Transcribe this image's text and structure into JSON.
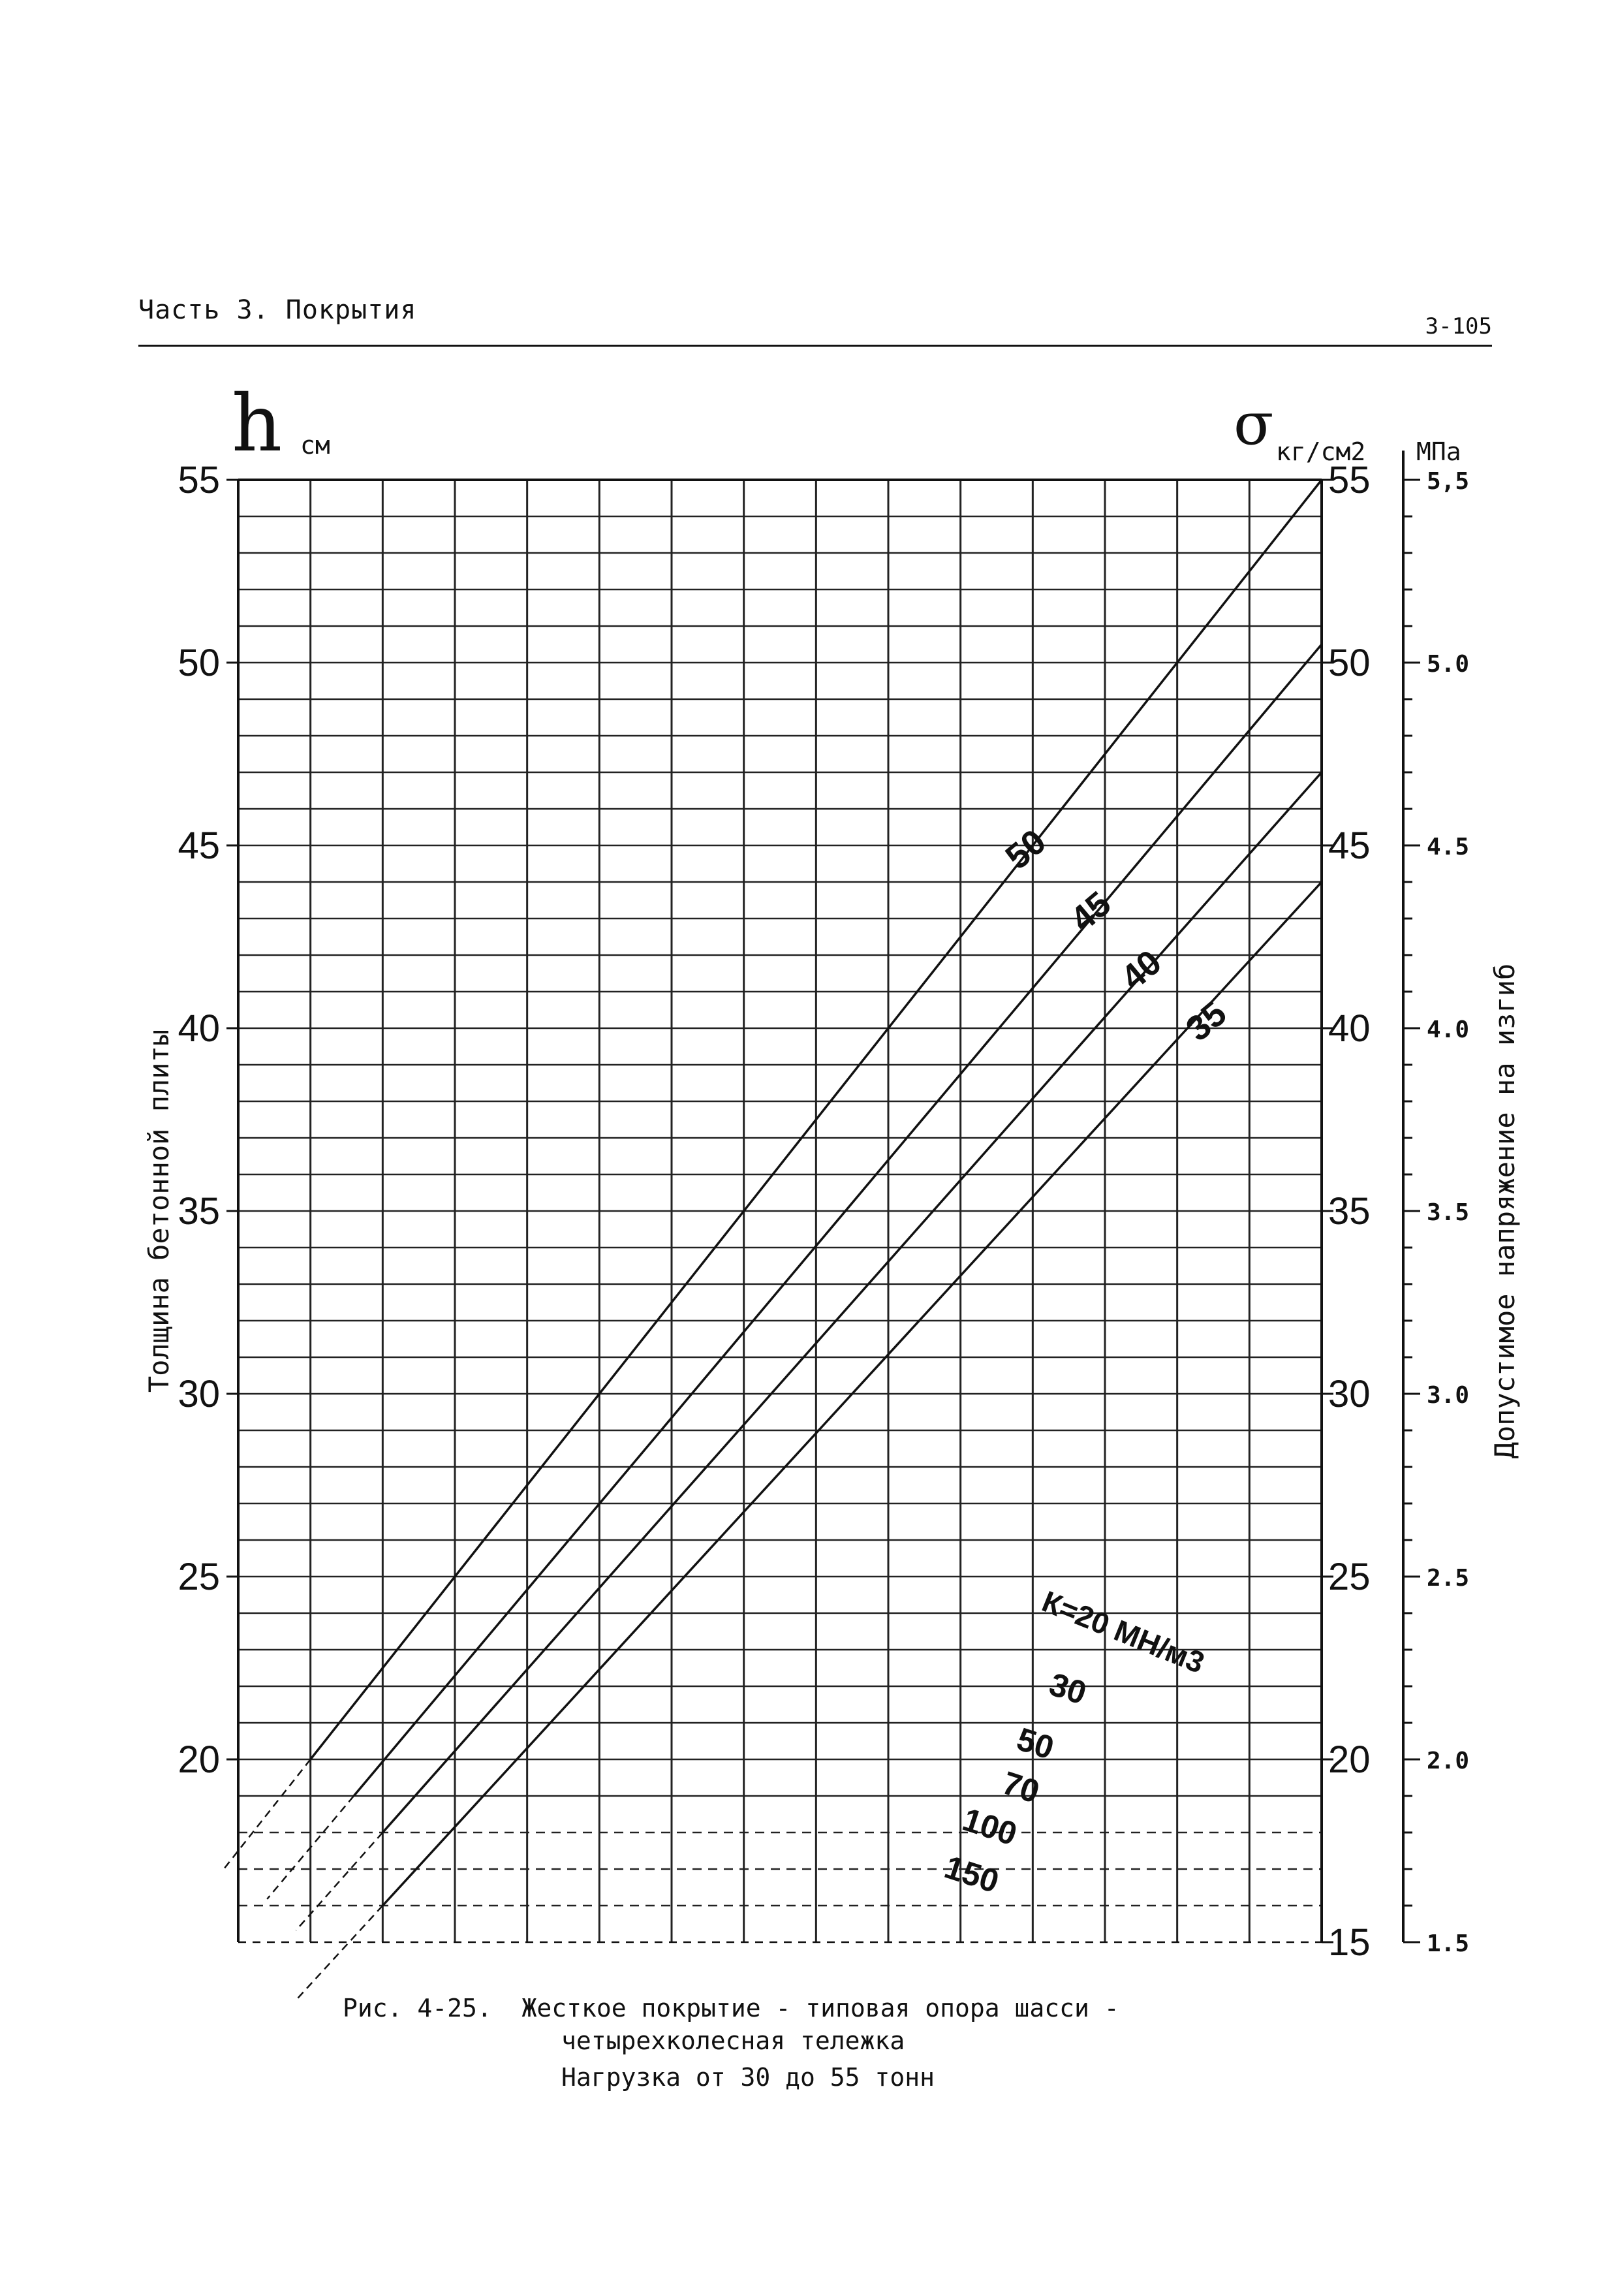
{
  "header": {
    "section": "Часть 3.  Покрытия",
    "page_number": "3-105"
  },
  "chart_data": {
    "type": "line",
    "left_axis": {
      "symbol": "h",
      "unit": "см",
      "label": "Толщина бетонной плиты",
      "ticks": [
        55,
        50,
        45,
        40,
        35,
        30,
        25,
        20
      ]
    },
    "right_axis": {
      "symbol": "σ",
      "unit": "кг/см2",
      "label": "Допустимое напряжение на изгиб",
      "ticks": [
        55,
        50,
        45,
        40,
        35,
        30,
        25,
        20,
        15
      ]
    },
    "far_right_axis": {
      "unit": "МПа",
      "ticks": [
        "5,5",
        "5.0",
        "4.5",
        "4.0",
        "3.5",
        "3.0",
        "2.5",
        "2.0",
        "1.5"
      ]
    },
    "x": {
      "min": 0,
      "max": 15
    },
    "y": {
      "min": 15,
      "max": 55
    },
    "grid": true,
    "series": [
      {
        "name": "50 т",
        "points": [
          [
            1,
            20
          ],
          [
            15,
            55
          ]
        ]
      },
      {
        "name": "45 т",
        "points": [
          [
            1.6,
            19
          ],
          [
            15,
            50.5
          ]
        ]
      },
      {
        "name": "40 т",
        "points": [
          [
            2,
            18
          ],
          [
            15,
            47
          ]
        ]
      },
      {
        "name": "35 т",
        "points": [
          [
            2,
            16
          ],
          [
            15,
            44
          ]
        ]
      }
    ],
    "series_labels": [
      "50",
      "45",
      "40",
      "35"
    ],
    "k_labels": {
      "title": "К=20 МН/м3",
      "values": [
        "30",
        "50",
        "70",
        "100",
        "150"
      ]
    }
  },
  "caption": {
    "line1": "Рис. 4-25.  Жесткое покрытие - типовая опора шасси -",
    "line2": "четырехколесная тележка",
    "line3": "Нагрузка от 30 до 55 тонн"
  }
}
